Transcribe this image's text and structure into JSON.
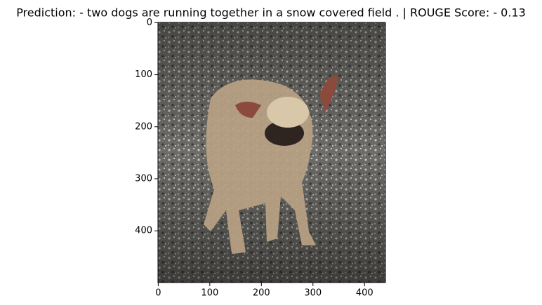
{
  "chart_data": {
    "type": "image",
    "title": "Prediction: - two dogs are running together in a snow covered field . | ROUGE Score: - 0.13",
    "xlim": [
      -0.5,
      440.5
    ],
    "ylim": [
      499.5,
      -0.5
    ],
    "xticks": [
      0,
      100,
      200,
      300,
      400
    ],
    "yticks": [
      0,
      100,
      200,
      300,
      400
    ]
  }
}
